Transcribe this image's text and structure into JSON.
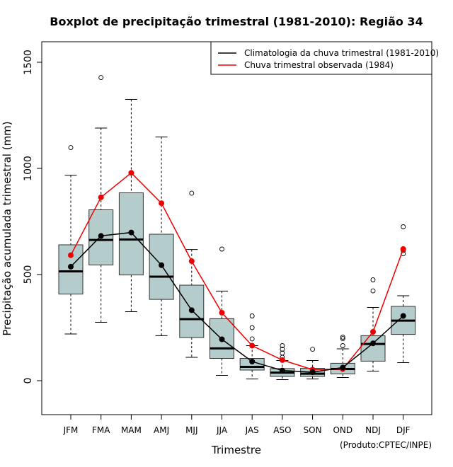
{
  "chart_data": {
    "type": "boxplot",
    "title": "Boxplot de precipitação trimestral (1981-2010): Região 34",
    "xlabel": "Trimestre",
    "ylabel": "Precipitação acumulada trimestral (mm)",
    "credit": "(Produto:CPTEC/INPE)",
    "ylim": [
      -160,
      1600
    ],
    "yticks": [
      0,
      500,
      1000,
      1500
    ],
    "categories": [
      "JFM",
      "FMA",
      "MAM",
      "AMJ",
      "MJJ",
      "JJA",
      "JAS",
      "ASO",
      "SON",
      "OND",
      "NDJ",
      "DJF"
    ],
    "boxes": [
      {
        "min": 220,
        "q1": 408,
        "median": 515,
        "q3": 640,
        "max": 968,
        "outliers": [
          1098
        ]
      },
      {
        "min": 275,
        "q1": 545,
        "median": 663,
        "q3": 805,
        "max": 1190,
        "outliers": [
          1428
        ]
      },
      {
        "min": 325,
        "q1": 498,
        "median": 665,
        "q3": 885,
        "max": 1325,
        "outliers": []
      },
      {
        "min": 212,
        "q1": 383,
        "median": 490,
        "q3": 690,
        "max": 1148,
        "outliers": []
      },
      {
        "min": 110,
        "q1": 203,
        "median": 290,
        "q3": 450,
        "max": 618,
        "outliers": [
          883
        ]
      },
      {
        "min": 25,
        "q1": 105,
        "median": 152,
        "q3": 292,
        "max": 422,
        "outliers": [
          620
        ]
      },
      {
        "min": 8,
        "q1": 50,
        "median": 65,
        "q3": 105,
        "max": 165,
        "outliers": [
          197,
          250,
          305
        ]
      },
      {
        "min": 5,
        "q1": 20,
        "median": 38,
        "q3": 57,
        "max": 95,
        "outliers": [
          110,
          130,
          148,
          165
        ]
      },
      {
        "min": 8,
        "q1": 20,
        "median": 33,
        "q3": 58,
        "max": 95,
        "outliers": [
          148
        ]
      },
      {
        "min": 15,
        "q1": 32,
        "median": 55,
        "q3": 82,
        "max": 150,
        "outliers": [
          165,
          198,
          205
        ]
      },
      {
        "min": 45,
        "q1": 92,
        "median": 173,
        "q3": 212,
        "max": 345,
        "outliers": [
          423,
          475
        ]
      },
      {
        "min": 85,
        "q1": 218,
        "median": 283,
        "q3": 350,
        "max": 400,
        "outliers": [
          598,
          613,
          725
        ]
      }
    ],
    "series": [
      {
        "name": "Climatologia da chuva trimestral (1981-2010)",
        "color": "#000000",
        "values": [
          537,
          682,
          698,
          544,
          332,
          195,
          90,
          48,
          40,
          62,
          176,
          305
        ]
      },
      {
        "name": "Chuva trimestral observada (1984)",
        "color": "#ee0000",
        "values": [
          591,
          864,
          979,
          836,
          563,
          320,
          165,
          97,
          52,
          55,
          230,
          620
        ]
      }
    ],
    "box_fill": "#b5cccc",
    "legend_position": "top-right"
  }
}
